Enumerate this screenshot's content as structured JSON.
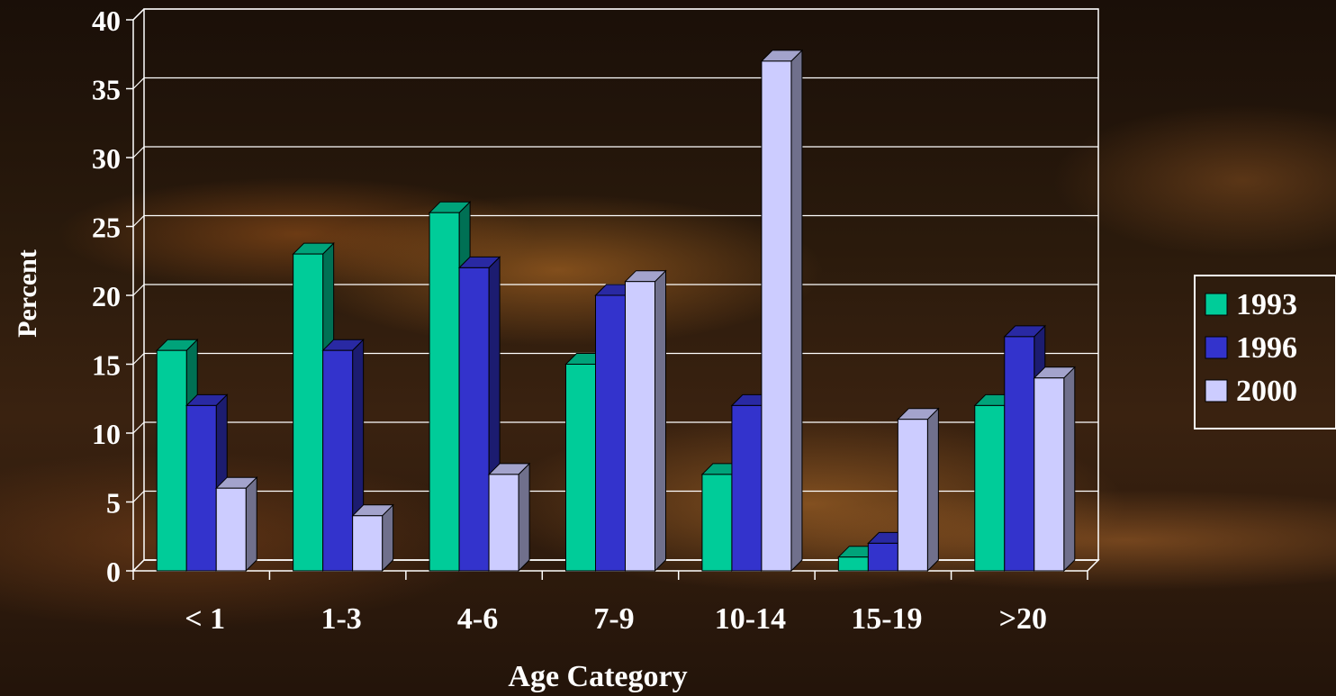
{
  "chart_data": {
    "type": "bar",
    "xlabel": "Age Category",
    "ylabel": "Percent",
    "ylim": [
      0,
      40
    ],
    "yticks": [
      0,
      5,
      10,
      15,
      20,
      25,
      30,
      35,
      40
    ],
    "categories": [
      "< 1",
      "1-3",
      "4-6",
      "7-9",
      "10-14",
      "15-19",
      ">20"
    ],
    "series": [
      {
        "name": "1993",
        "values": [
          16,
          23,
          26,
          15,
          7,
          1,
          12
        ],
        "color": "#00cc99"
      },
      {
        "name": "1996",
        "values": [
          12,
          16,
          22,
          20,
          12,
          2,
          17
        ],
        "color": "#3333cc"
      },
      {
        "name": "2000",
        "values": [
          6,
          4,
          7,
          21,
          37,
          11,
          14
        ],
        "color": "#ccccff"
      }
    ],
    "grid": true,
    "legend_position": "right"
  }
}
